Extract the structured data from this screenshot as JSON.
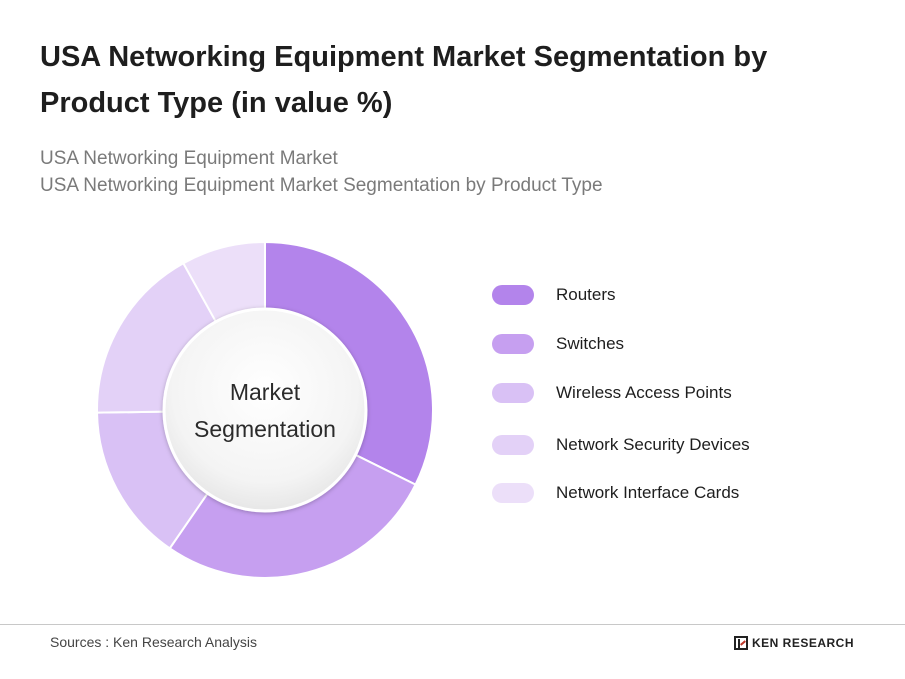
{
  "header": {
    "title": "USA Networking Equipment Market Segmentation by Product Type (in value %)",
    "subtitle_line1": "USA Networking Equipment Market",
    "subtitle_line2": "USA Networking Equipment Market Segmentation by Product Type"
  },
  "chart_data": {
    "type": "pie",
    "variant": "donut",
    "title": "USA Networking Equipment Market Segmentation by Product Type (in value %)",
    "center_label_line1": "Market",
    "center_label_line2": "Segmentation",
    "categories": [
      "Routers",
      "Switches",
      "Wireless Access Points",
      "Network Security Devices",
      "Network Interface Cards"
    ],
    "values": [
      32,
      27,
      15,
      17,
      8
    ],
    "colors": [
      "#b384eb",
      "#c69ff0",
      "#d9c1f5",
      "#e3d1f7",
      "#ecdff9"
    ],
    "legend_placement": "right"
  },
  "legend": {
    "items": [
      {
        "label": "Routers",
        "color": "#b384eb"
      },
      {
        "label": "Switches",
        "color": "#c69ff0"
      },
      {
        "label": "Wireless Access Points",
        "color": "#d9c1f5"
      },
      {
        "label": "Network Security Devices",
        "color": "#e3d1f7"
      },
      {
        "label": "Network Interface Cards",
        "color": "#ecdff9"
      }
    ]
  },
  "footer": {
    "sources": "Sources : Ken Research Analysis",
    "brand": "KEN RESEARCH",
    "brand_icon": "ken-research-logo-icon"
  }
}
